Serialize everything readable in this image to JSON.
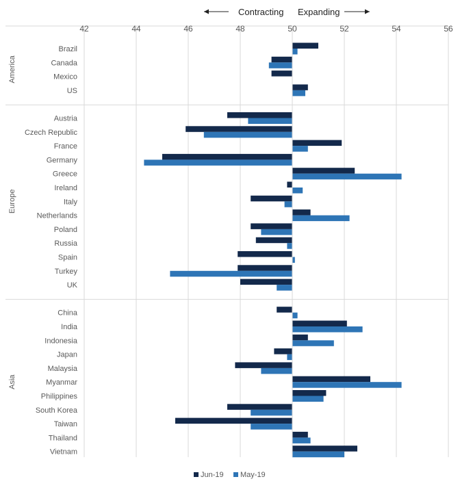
{
  "chart_data": {
    "type": "bar",
    "orientation": "horizontal",
    "baseline": 50,
    "xlim": [
      42,
      56
    ],
    "x_ticks": [
      "42",
      "44",
      "46",
      "48",
      "50",
      "52",
      "54",
      "56"
    ],
    "x_tick_values": [
      42,
      44,
      46,
      48,
      50,
      52,
      54,
      56
    ],
    "grid": true,
    "legend_position": "bottom",
    "annotations": {
      "left": "Contracting",
      "right": "Expanding"
    },
    "series": [
      {
        "name": "Jun-19",
        "color": "#13294b"
      },
      {
        "name": "May-19",
        "color": "#2e75b6"
      }
    ],
    "groups": [
      {
        "name": "America",
        "categories": [
          {
            "label": "Brazil",
            "values": [
              51.0,
              50.2
            ]
          },
          {
            "label": "Canada",
            "values": [
              49.2,
              49.1
            ]
          },
          {
            "label": "Mexico",
            "values": [
              49.2,
              null
            ]
          },
          {
            "label": "US",
            "values": [
              50.6,
              50.5
            ]
          }
        ]
      },
      {
        "name": "Europe",
        "categories": [
          {
            "label": "Austria",
            "values": [
              47.5,
              48.3
            ]
          },
          {
            "label": "Czech Republic",
            "values": [
              45.9,
              46.6
            ]
          },
          {
            "label": "France",
            "values": [
              51.9,
              50.6
            ]
          },
          {
            "label": "Germany",
            "values": [
              45.0,
              44.3
            ]
          },
          {
            "label": "Greece",
            "values": [
              52.4,
              54.2
            ]
          },
          {
            "label": "Ireland",
            "values": [
              49.8,
              50.4
            ]
          },
          {
            "label": "Italy",
            "values": [
              48.4,
              49.7
            ]
          },
          {
            "label": "Netherlands",
            "values": [
              50.7,
              52.2
            ]
          },
          {
            "label": "Poland",
            "values": [
              48.4,
              48.8
            ]
          },
          {
            "label": "Russia",
            "values": [
              48.6,
              49.8
            ]
          },
          {
            "label": "Spain",
            "values": [
              47.9,
              50.1
            ]
          },
          {
            "label": "Turkey",
            "values": [
              47.9,
              45.3
            ]
          },
          {
            "label": "UK",
            "values": [
              48.0,
              49.4
            ]
          }
        ]
      },
      {
        "name": "Asia",
        "categories": [
          {
            "label": "China",
            "values": [
              49.4,
              50.2
            ]
          },
          {
            "label": "India",
            "values": [
              52.1,
              52.7
            ]
          },
          {
            "label": "Indonesia",
            "values": [
              50.6,
              51.6
            ]
          },
          {
            "label": "Japan",
            "values": [
              49.3,
              49.8
            ]
          },
          {
            "label": "Malaysia",
            "values": [
              47.8,
              48.8
            ]
          },
          {
            "label": "Myanmar",
            "values": [
              53.0,
              54.2
            ]
          },
          {
            "label": "Philippines",
            "values": [
              51.3,
              51.2
            ]
          },
          {
            "label": "South Korea",
            "values": [
              47.5,
              48.4
            ]
          },
          {
            "label": "Taiwan",
            "values": [
              45.5,
              48.4
            ]
          },
          {
            "label": "Thailand",
            "values": [
              50.6,
              50.7
            ]
          },
          {
            "label": "Vietnam",
            "values": [
              52.5,
              52.0
            ]
          }
        ]
      }
    ]
  }
}
